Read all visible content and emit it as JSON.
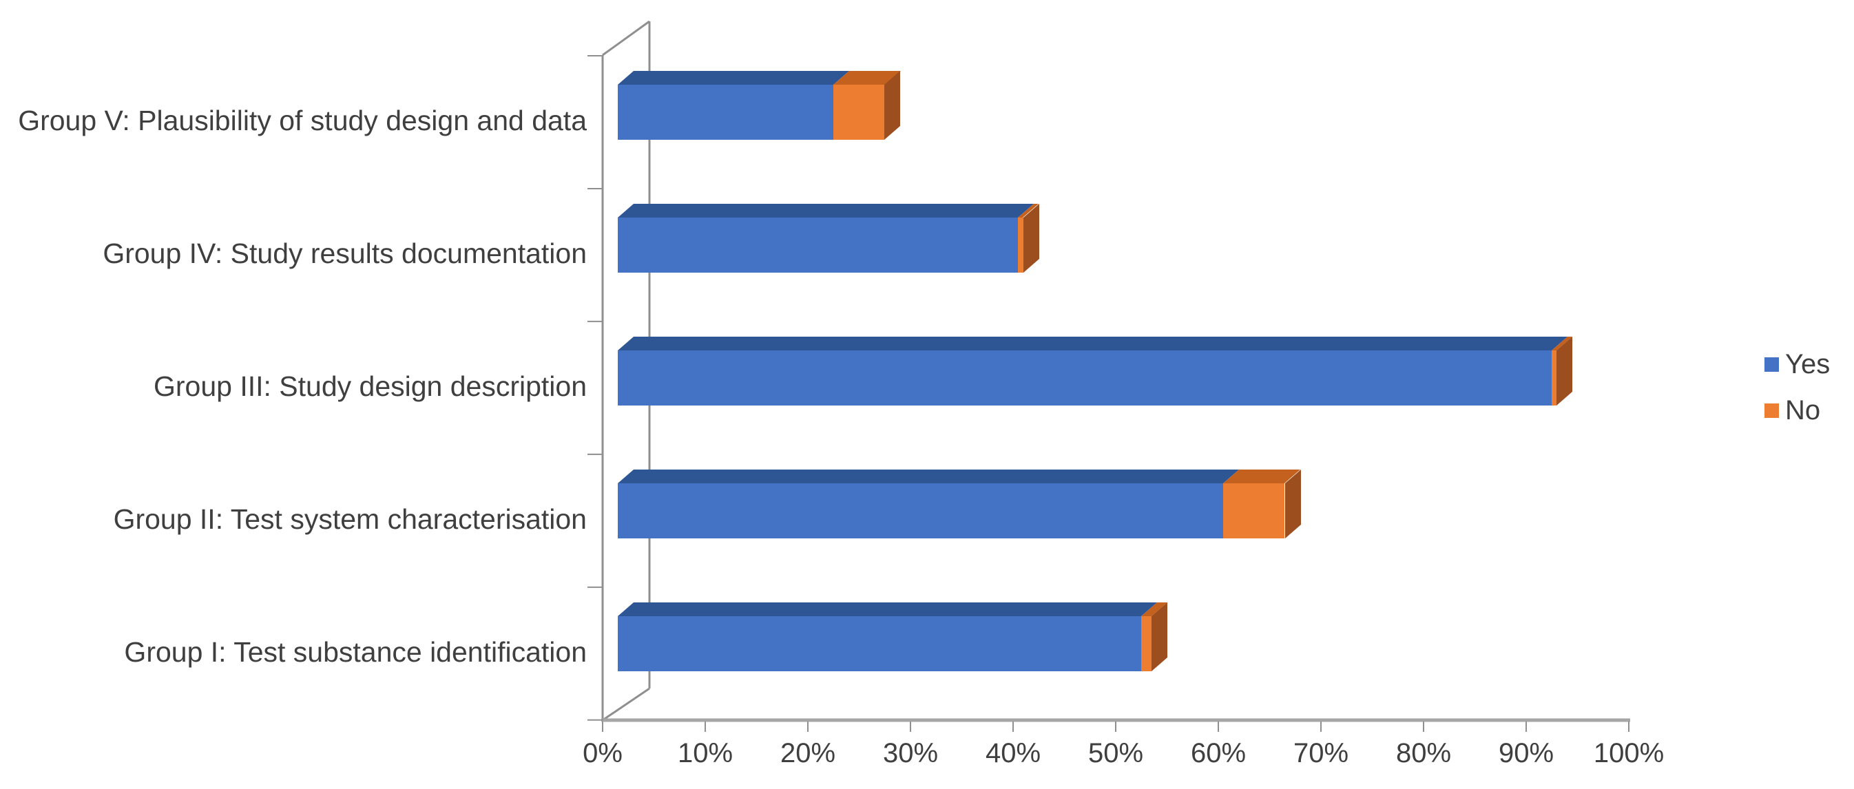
{
  "chart_data": {
    "type": "bar",
    "subtype": "3d-horizontal-stacked",
    "title": "",
    "xlabel": "",
    "ylabel": "",
    "categories": [
      "Group V: Plausibility of study design and data",
      "Group IV: Study results documentation",
      "Group III: Study design description",
      "Group II: Test system characterisation",
      "Group I: Test substance identification"
    ],
    "series": [
      {
        "name": "Yes",
        "color": "#4472C4",
        "values": [
          21,
          39,
          91,
          59,
          51
        ]
      },
      {
        "name": "No",
        "color": "#ED7D31",
        "values": [
          5,
          0.5,
          0.5,
          6,
          1
        ]
      }
    ],
    "value_axis": {
      "min": 0,
      "max": 100,
      "step": 10,
      "unit": "%",
      "tick_labels": [
        "0%",
        "10%",
        "20%",
        "30%",
        "40%",
        "50%",
        "60%",
        "70%",
        "80%",
        "90%",
        "100%"
      ]
    },
    "legend": {
      "position": "right",
      "entries": [
        "Yes",
        "No"
      ]
    },
    "gridlines": false
  },
  "colors": {
    "yes_front": "#4472C4",
    "yes_top": "#2E5594",
    "no_front": "#ED7D31",
    "no_top": "#C4611F",
    "no_side": "#9C4E1E",
    "axis_line": "#A6A6A6",
    "tick": "#8F8F8F",
    "text": "#3F3F3F"
  }
}
